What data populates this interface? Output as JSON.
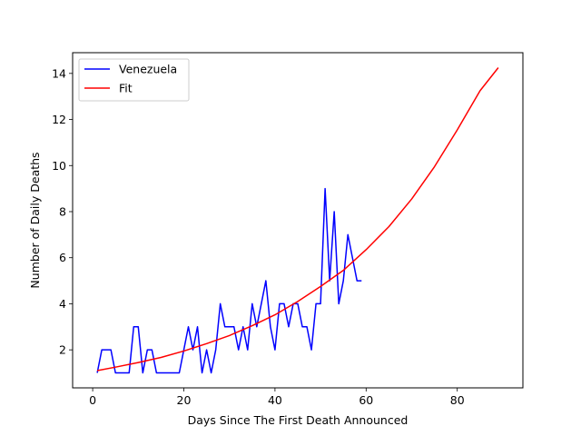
{
  "chart_data": {
    "type": "line",
    "title": "",
    "xlabel": "Days Since The First Death Announced",
    "ylabel": "Number of Daily Deaths",
    "xlim": [
      -4.4,
      94.4
    ],
    "ylim": [
      0.35,
      14.9
    ],
    "xticks": [
      0,
      20,
      40,
      60,
      80
    ],
    "yticks": [
      2,
      4,
      6,
      8,
      10,
      12,
      14
    ],
    "grid": false,
    "legend_position": "top-left",
    "series": [
      {
        "name": "Venezuela",
        "color": "#0000ff",
        "x": [
          1,
          2,
          3,
          4,
          5,
          6,
          7,
          8,
          9,
          10,
          11,
          12,
          13,
          14,
          15,
          16,
          17,
          18,
          19,
          20,
          21,
          22,
          23,
          24,
          25,
          26,
          27,
          28,
          29,
          30,
          31,
          32,
          33,
          34,
          35,
          36,
          37,
          38,
          39,
          40,
          41,
          42,
          43,
          44,
          45,
          46,
          47,
          48,
          49,
          50,
          51,
          52,
          53,
          54,
          55,
          56,
          57,
          58,
          59
        ],
        "y": [
          1,
          2,
          2,
          2,
          1,
          1,
          1,
          1,
          3,
          3,
          1,
          2,
          2,
          1,
          1,
          1,
          1,
          1,
          1,
          2,
          3,
          2,
          3,
          1,
          2,
          1,
          2,
          4,
          3,
          3,
          3,
          2,
          3,
          2,
          4,
          3,
          4,
          5,
          3,
          2,
          4,
          4,
          3,
          4,
          4,
          3,
          3,
          2,
          4,
          4,
          9,
          5,
          8,
          4,
          5,
          7,
          6,
          5,
          5
        ]
      },
      {
        "name": "Fit",
        "color": "#ff0000",
        "x": [
          1,
          5,
          10,
          15,
          20,
          25,
          30,
          35,
          40,
          45,
          50,
          55,
          60,
          65,
          70,
          75,
          80,
          85,
          89
        ],
        "y": [
          1.1,
          1.25,
          1.45,
          1.67,
          1.95,
          2.27,
          2.62,
          3.05,
          3.52,
          4.1,
          4.75,
          5.45,
          6.35,
          7.35,
          8.55,
          9.95,
          11.55,
          13.25,
          14.25
        ]
      }
    ]
  }
}
